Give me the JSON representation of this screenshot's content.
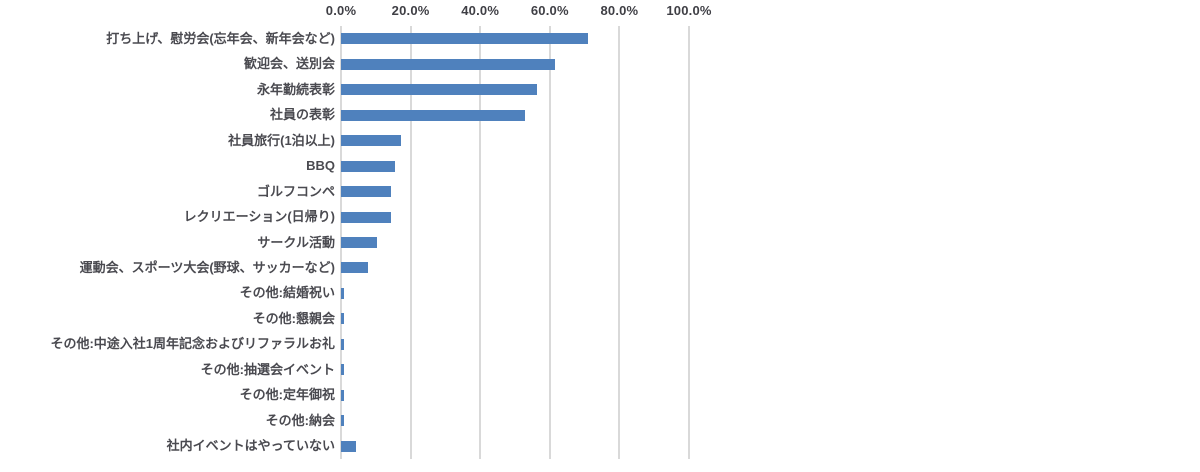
{
  "chart_data": {
    "type": "bar",
    "orientation": "horizontal",
    "title": "",
    "categories": [
      "打ち上げ、慰労会(忘年会、新年会など)",
      "歓迎会、送別会",
      "永年勤続表彰",
      "社員の表彰",
      "社員旅行(1泊以上)",
      "BBQ",
      "ゴルフコンペ",
      "レクリエーション(日帰り)",
      "サークル活動",
      "運動会、スポーツ大会(野球、サッカーなど)",
      "その他:結婚祝い",
      "その他:懇親会",
      "その他:中途入社1周年記念およびリファラルお礼",
      "その他:抽選会イベント",
      "その他:定年御祝",
      "その他:納会",
      "社内イベントはやっていない"
    ],
    "values": [
      70.9,
      61.5,
      56.4,
      53.0,
      17.1,
      15.4,
      14.5,
      14.5,
      10.3,
      7.7,
      0.9,
      0.9,
      0.9,
      0.9,
      0.9,
      0.9,
      4.3
    ],
    "x_axis": {
      "position": "top",
      "tick_labels": [
        "0.0%",
        "20.0%",
        "40.0%",
        "60.0%",
        "80.0%",
        "100.0%"
      ],
      "tick_values": [
        0,
        20,
        40,
        60,
        80,
        100
      ],
      "range": [
        0,
        100
      ]
    },
    "ylabel": "",
    "xlabel": "",
    "grid": true,
    "legend": false,
    "colors": {
      "bar": "#4f81bd",
      "gridline": "#d9d9d9",
      "tick_text": "#3f3f45",
      "label_text": "#4a4a50"
    }
  }
}
